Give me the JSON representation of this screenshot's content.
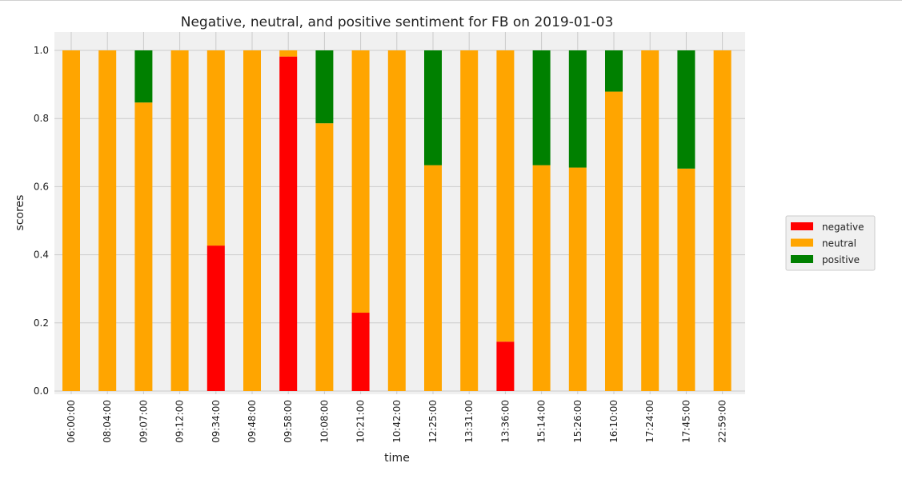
{
  "chart_data": {
    "type": "bar",
    "stacked": true,
    "title": "Negative, neutral, and positive sentiment for FB on 2019-01-03",
    "xlabel": "time",
    "ylabel": "scores",
    "ylim": [
      0,
      1.05
    ],
    "yticks": [
      "0.0",
      "0.2",
      "0.4",
      "0.6",
      "0.8",
      "1.0"
    ],
    "ytick_values": [
      0,
      0.2,
      0.4,
      0.6,
      0.8,
      1.0
    ],
    "grid": true,
    "legend_position": "right",
    "categories": [
      "06:00:00",
      "08:04:00",
      "09:07:00",
      "09:12:00",
      "09:34:00",
      "09:48:00",
      "09:58:00",
      "10:08:00",
      "10:21:00",
      "10:42:00",
      "12:25:00",
      "13:31:00",
      "13:36:00",
      "15:14:00",
      "15:26:00",
      "16:10:00",
      "17:24:00",
      "17:45:00",
      "22:59:00"
    ],
    "series": [
      {
        "name": "negative",
        "color": "#ff0000",
        "values": [
          0,
          0,
          0,
          0,
          0.427,
          0,
          0.982,
          0,
          0.23,
          0,
          0,
          0,
          0.145,
          0,
          0,
          0,
          0,
          0,
          0
        ]
      },
      {
        "name": "neutral",
        "color": "#ffa500",
        "values": [
          1,
          1,
          0.847,
          1,
          0.573,
          1,
          0.018,
          0.786,
          0.77,
          1,
          0.663,
          1,
          0.855,
          0.663,
          0.656,
          0.879,
          1,
          0.653,
          1
        ]
      },
      {
        "name": "positive",
        "color": "#008000",
        "values": [
          0,
          0,
          0.153,
          0,
          0,
          0,
          0,
          0.214,
          0,
          0,
          0.337,
          0,
          0,
          0.337,
          0.344,
          0.121,
          0,
          0.347,
          0
        ]
      }
    ]
  }
}
